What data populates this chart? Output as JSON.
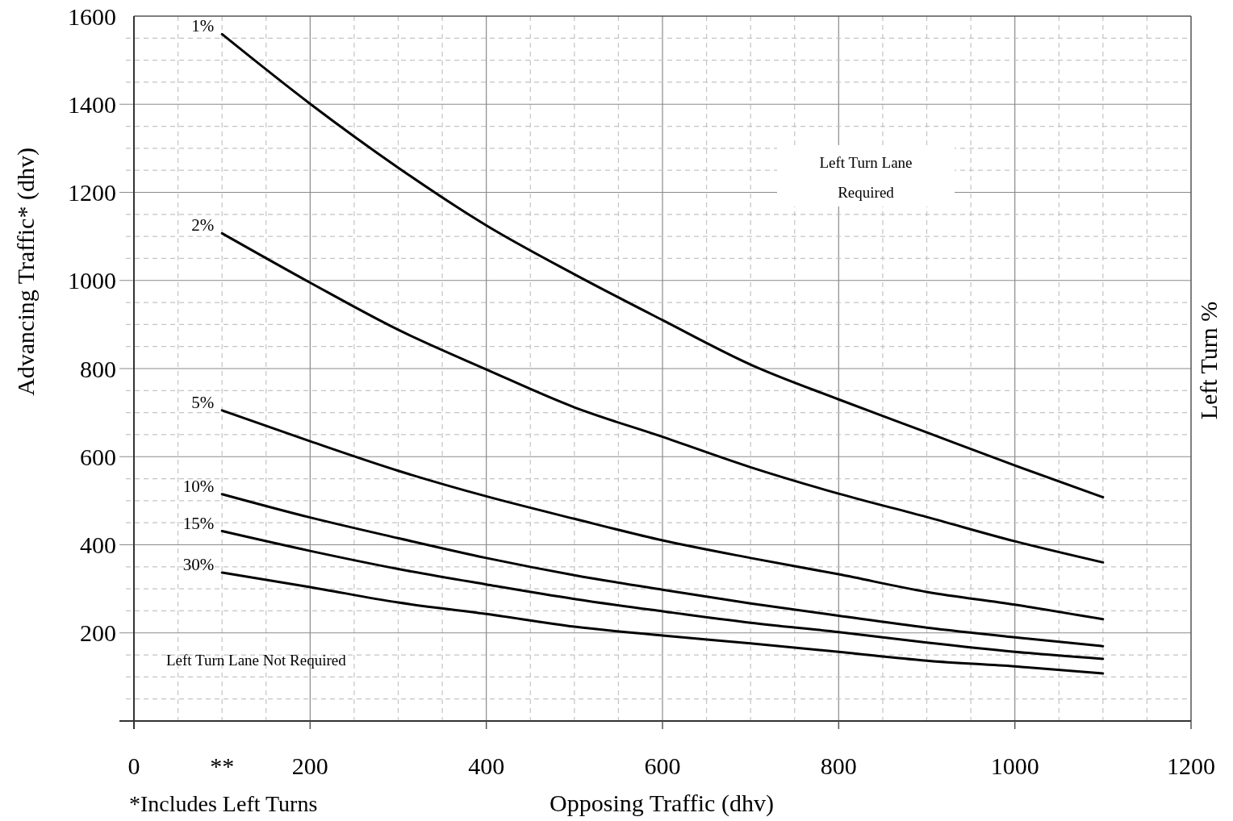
{
  "chart_data": {
    "type": "line",
    "xlabel": "Opposing Traffic (dhv)",
    "ylabel": "Advancing Traffic* (dhv)",
    "y2label": "Left Turn %",
    "x": [
      100,
      200,
      300,
      400,
      500,
      600,
      700,
      800,
      900,
      1000,
      1100
    ],
    "series": [
      {
        "name": "1%",
        "color": "#000000",
        "values": [
          1559,
          1401,
          1256,
          1125,
          1014,
          910,
          809,
          730,
          655,
          580,
          508
        ]
      },
      {
        "name": "2%",
        "color": "#000000",
        "values": [
          1107,
          995,
          888,
          798,
          712,
          645,
          576,
          516,
          463,
          408,
          360
        ]
      },
      {
        "name": "5%",
        "color": "#000000",
        "values": [
          705,
          635,
          568,
          510,
          459,
          410,
          370,
          333,
          293,
          264,
          231
        ]
      },
      {
        "name": "10%",
        "color": "#000000",
        "values": [
          515,
          462,
          415,
          370,
          331,
          298,
          267,
          239,
          212,
          190,
          170
        ]
      },
      {
        "name": "15%",
        "color": "#000000",
        "values": [
          431,
          386,
          345,
          310,
          277,
          249,
          223,
          202,
          178,
          157,
          141
        ]
      },
      {
        "name": "30%",
        "color": "#000000",
        "values": [
          337,
          304,
          269,
          243,
          214,
          194,
          176,
          157,
          137,
          124,
          108
        ]
      }
    ],
    "xlim": [
      0,
      1200
    ],
    "ylim": [
      0,
      1600
    ],
    "xticks": [
      0,
      {
        "value": 50,
        "label": null
      },
      {
        "value": 100,
        "label": "**"
      },
      {
        "value": 150,
        "label": null
      },
      200,
      {
        "value": 250,
        "label": null
      },
      {
        "value": 300,
        "label": null
      },
      {
        "value": 350,
        "label": null
      },
      400,
      {
        "value": 450,
        "label": null
      },
      {
        "value": 500,
        "label": null
      },
      {
        "value": 550,
        "label": null
      },
      600,
      {
        "value": 650,
        "label": null
      },
      {
        "value": 700,
        "label": null
      },
      {
        "value": 750,
        "label": null
      },
      800,
      {
        "value": 850,
        "label": null
      },
      {
        "value": 900,
        "label": null
      },
      {
        "value": 950,
        "label": null
      },
      1000,
      {
        "value": 1050,
        "label": null
      },
      {
        "value": 1100,
        "label": null
      },
      {
        "value": 1150,
        "label": null
      },
      1200
    ],
    "yticks": [
      {
        "value": 0,
        "label": null
      },
      {
        "value": 50,
        "label": null
      },
      {
        "value": 100,
        "label": null
      },
      {
        "value": 150,
        "label": null
      },
      200,
      {
        "value": 250,
        "label": null
      },
      {
        "value": 300,
        "label": null
      },
      {
        "value": 350,
        "label": null
      },
      400,
      {
        "value": 450,
        "label": null
      },
      {
        "value": 500,
        "label": null
      },
      {
        "value": 550,
        "label": null
      },
      600,
      {
        "value": 650,
        "label": null
      },
      {
        "value": 700,
        "label": null
      },
      {
        "value": 750,
        "label": null
      },
      800,
      {
        "value": 850,
        "label": null
      },
      {
        "value": 900,
        "label": null
      },
      {
        "value": 950,
        "label": null
      },
      1000,
      {
        "value": 1050,
        "label": null
      },
      {
        "value": 1100,
        "label": null
      },
      {
        "value": 1150,
        "label": null
      },
      1200,
      {
        "value": 1250,
        "label": null
      },
      {
        "value": 1300,
        "label": null
      },
      {
        "value": 1350,
        "label": null
      },
      1400,
      {
        "value": 1450,
        "label": null
      },
      {
        "value": 1500,
        "label": null
      },
      {
        "value": 1550,
        "label": null
      },
      1600
    ],
    "grid": true,
    "line_style": "solid",
    "marker": "none",
    "legend": false,
    "annotations": [
      "Left Turn Lane Required",
      "Left Turn Lane Not Required",
      "*Includes Left Turns"
    ]
  }
}
